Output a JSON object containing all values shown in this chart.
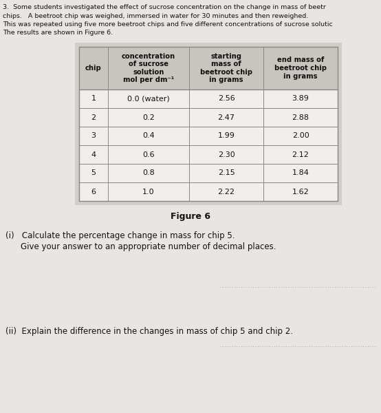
{
  "intro_lines": [
    "3.  Some students investigated the effect of sucrose concentration on the change in mass of beetr",
    "chips.   A beetroot chip was weighed, immersed in water for 30 minutes and then reweighed.",
    "This was repeated using five more beetroot chips and five different concentrations of sucrose solutic",
    "The results are shown in Figure 6."
  ],
  "table_headers": [
    "chip",
    "concentration\nof sucrose\nsolution\nmol per dm⁻¹",
    "starting\nmass of\nbeetroot chip\nin grams",
    "end mass of\nbeetroot chip\nin grams"
  ],
  "table_data": [
    [
      "1",
      "0.0 (water)",
      "2.56",
      "3.89"
    ],
    [
      "2",
      "0.2",
      "2.47",
      "2.88"
    ],
    [
      "3",
      "0.4",
      "1.99",
      "2.00"
    ],
    [
      "4",
      "0.6",
      "2.30",
      "2.12"
    ],
    [
      "5",
      "0.8",
      "2.15",
      "1.84"
    ],
    [
      "6",
      "1.0",
      "2.22",
      "1.62"
    ]
  ],
  "figure_label": "Figure 6",
  "question_i_a": "(i)   Calculate the percentage change in mass for chip 5.",
  "question_i_b": "Give your answer to an appropriate number of decimal places.",
  "question_ii": "(ii)  Explain the difference in the changes in mass of chip 5 and chip 2.",
  "bg_color": "#e8e6e2",
  "table_outer_bg": "#d0ceca",
  "table_header_bg": "#c8c5be",
  "table_row_bg": "#f0efec",
  "table_border_color": "#888880",
  "text_color": "#111111",
  "dotted_line_color": "#aaaaaa"
}
